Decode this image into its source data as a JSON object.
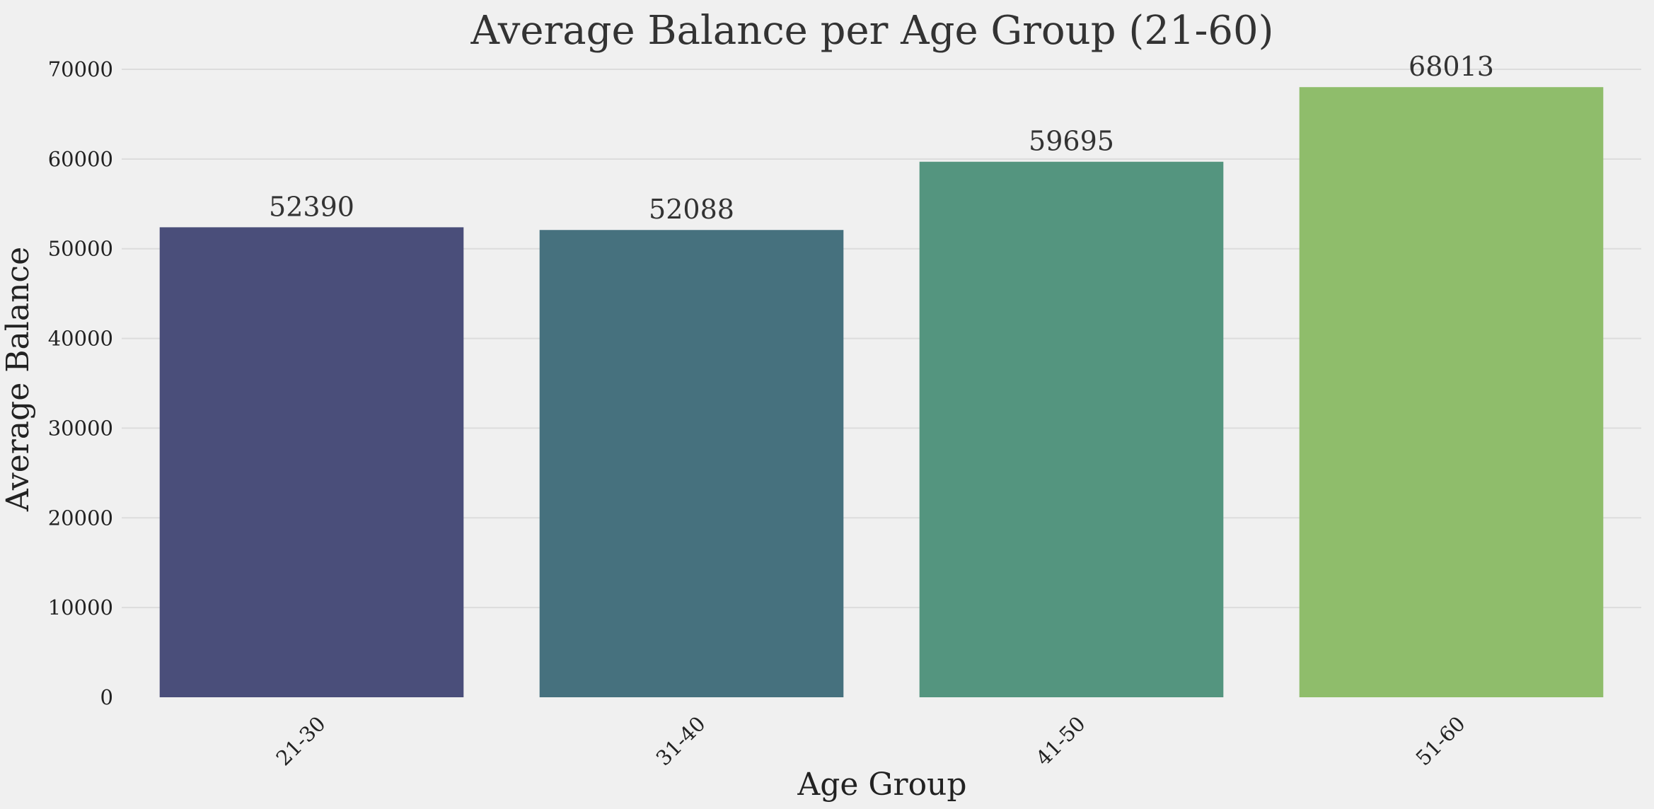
{
  "chart_data": {
    "type": "bar",
    "title": "Average Balance per Age Group (21-60)",
    "xlabel": "Age Group",
    "ylabel": "Average Balance",
    "categories": [
      "21-30",
      "31-40",
      "41-50",
      "51-60"
    ],
    "values": [
      52390,
      52088,
      59695,
      68013
    ],
    "data_labels": [
      "52390",
      "52088",
      "59695",
      "68013"
    ],
    "ylim": [
      0,
      70000
    ],
    "yticks": [
      0,
      10000,
      20000,
      30000,
      40000,
      50000,
      60000,
      70000
    ],
    "ytick_labels": [
      "0",
      "10000",
      "20000",
      "30000",
      "40000",
      "50000",
      "60000",
      "70000"
    ],
    "colors": [
      "#4a4e7a",
      "#46717e",
      "#54957f",
      "#8fbd6b"
    ],
    "background": "#f0f0f0",
    "grid": true,
    "legend": "none",
    "xtick_rotation": 45
  }
}
